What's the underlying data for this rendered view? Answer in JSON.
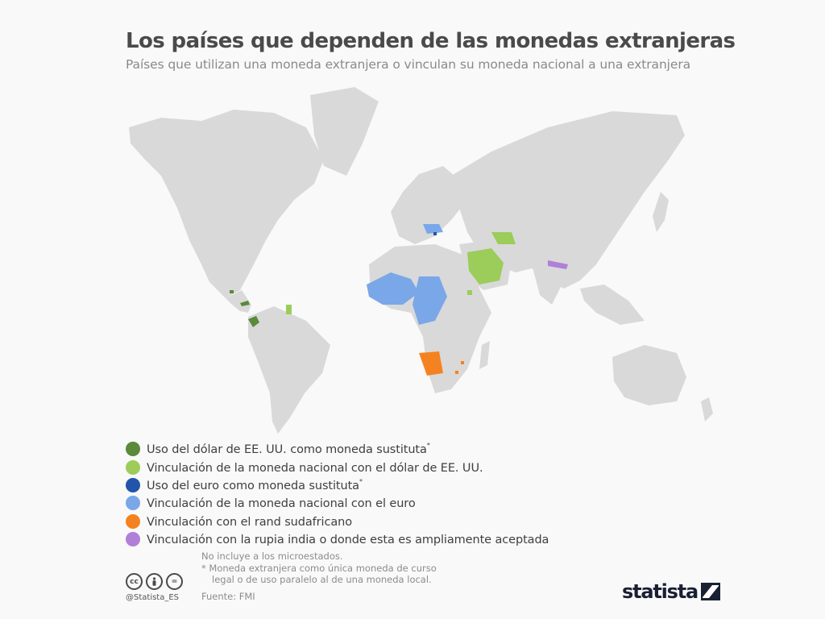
{
  "title": "Los países que dependen de las monedas extranjeras",
  "subtitle": "Países que utilizan una moneda extranjera o vinculan su moneda nacional a una extranjera",
  "colors": {
    "land": "#d9d9d9",
    "usd_substitute": "#5a8a3a",
    "usd_peg": "#9ccc5a",
    "eur_substitute": "#2255aa",
    "eur_peg": "#7aa7e8",
    "rand": "#f58220",
    "rupee": "#b07fd8"
  },
  "legend": [
    {
      "label": "Uso del dólar de EE. UU. como moneda sustituta",
      "mark": "*",
      "color": "#5a8a3a"
    },
    {
      "label": "Vinculación de la moneda nacional con el dólar de EE. UU.",
      "mark": "",
      "color": "#9ccc5a"
    },
    {
      "label": "Uso del euro como moneda sustituta",
      "mark": "*",
      "color": "#2255aa"
    },
    {
      "label": "Vinculación de la moneda nacional con el euro",
      "mark": "",
      "color": "#7aa7e8"
    },
    {
      "label": "Vinculación con el rand sudafricano",
      "mark": "",
      "color": "#f58220"
    },
    {
      "label": "Vinculación con la rupia india o donde esta es ampliamente aceptada",
      "mark": "",
      "color": "#b07fd8"
    }
  ],
  "notes": {
    "line1": "No incluye a los microestados.",
    "line2": "* Moneda extranjera como única moneda de curso",
    "line3": "legal o de uso paralelo al de una moneda local."
  },
  "source": "Fuente: FMI",
  "handle": "@Statista_ES",
  "brand": "statista",
  "license_icons": [
    "cc-icon",
    "person-icon",
    "equals-icon"
  ]
}
